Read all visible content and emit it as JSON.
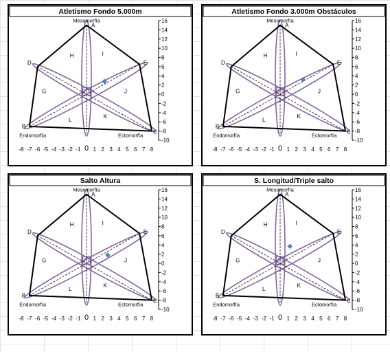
{
  "colors": {
    "polygon": "#000000",
    "ellipse": "#8064a2",
    "axis": "#000000",
    "point": "#4f81bd",
    "title_border": "#000000"
  },
  "chart_data": [
    {
      "type": "scatter",
      "title": "Atletismo Fondo 5.000m",
      "xlabel": "Ectomorfía",
      "ylabel": "Mesomorfía",
      "x_left_label": "Endomorfía",
      "xlim": [
        -8,
        8
      ],
      "ylim": [
        -10,
        16
      ],
      "x_ticks": [
        "-8",
        "-7",
        "-6",
        "-5",
        "-4",
        "-3",
        "-2",
        "-1",
        "0",
        "1",
        "2",
        "3",
        "4",
        "5",
        "6",
        "7",
        "8"
      ],
      "y_ticks": [
        "16",
        "14",
        "12",
        "10",
        "8",
        "6",
        "4",
        "2",
        "0",
        "-2",
        "-4",
        "-6",
        "-8",
        "-10"
      ],
      "x_zero_label": "0",
      "vertex_labels": [
        "A",
        "B",
        "C",
        "D",
        "E"
      ],
      "region_labels": [
        "H",
        "I",
        "J",
        "K",
        "L",
        "G"
      ],
      "polygon": [
        [
          0,
          15
        ],
        [
          6.5,
          6.5
        ],
        [
          8,
          -8
        ],
        [
          -7,
          -7
        ],
        [
          -6,
          6
        ]
      ],
      "point": {
        "x": 2.2,
        "y": 2.8
      }
    },
    {
      "type": "scatter",
      "title": "Atletismo Fondo 3.000m Obstáculos",
      "xlabel": "Ectomorfía",
      "ylabel": "Mesomorfía",
      "x_left_label": "Endomorfía",
      "xlim": [
        -8,
        8
      ],
      "ylim": [
        -10,
        16
      ],
      "x_ticks": [
        "-8",
        "-7",
        "-6",
        "-5",
        "-4",
        "-3",
        "-2",
        "-1",
        "0",
        "1",
        "2",
        "3",
        "4",
        "5",
        "6",
        "7",
        "8"
      ],
      "y_ticks": [
        "16",
        "14",
        "12",
        "10",
        "8",
        "6",
        "4",
        "2",
        "0",
        "-2",
        "-4",
        "-6",
        "-8",
        "-10"
      ],
      "x_zero_label": "0",
      "vertex_labels": [
        "A",
        "B",
        "C",
        "D",
        "E"
      ],
      "region_labels": [
        "H",
        "I",
        "J",
        "K",
        "L",
        "G"
      ],
      "polygon": [
        [
          0,
          15
        ],
        [
          6.5,
          6.5
        ],
        [
          8,
          -8
        ],
        [
          -7,
          -7
        ],
        [
          -6,
          6
        ]
      ],
      "point": {
        "x": 2.8,
        "y": 3.2
      }
    },
    {
      "type": "scatter",
      "title": "Salto Altura",
      "xlabel": "Ectomorfía",
      "ylabel": "Mesomorfía",
      "x_left_label": "Endomorfía",
      "xlim": [
        -8,
        8
      ],
      "ylim": [
        -10,
        16
      ],
      "x_ticks": [
        "-8",
        "-7",
        "-6",
        "-5",
        "-4",
        "-3",
        "-2",
        "-1",
        "0",
        "1",
        "2",
        "3",
        "4",
        "5",
        "6",
        "7",
        "8"
      ],
      "y_ticks": [
        "16",
        "14",
        "12",
        "10",
        "8",
        "6",
        "4",
        "2",
        "0",
        "-2",
        "-4",
        "-6",
        "-8",
        "-10"
      ],
      "x_zero_label": "0",
      "vertex_labels": [
        "A",
        "B",
        "C",
        "D",
        "E"
      ],
      "region_labels": [
        "H",
        "I",
        "J",
        "K",
        "L",
        "G"
      ],
      "polygon": [
        [
          0,
          15
        ],
        [
          6.5,
          6.5
        ],
        [
          8,
          -8
        ],
        [
          -7,
          -7
        ],
        [
          -6,
          6
        ]
      ],
      "point": {
        "x": 2.6,
        "y": 1.8
      }
    },
    {
      "type": "scatter",
      "title": "S. Longitud/Triple salto",
      "xlabel": "Ectomorfía",
      "ylabel": "Mesomorfía",
      "x_left_label": "Endomorfía",
      "xlim": [
        -8,
        8
      ],
      "ylim": [
        -10,
        16
      ],
      "x_ticks": [
        "-8",
        "-7",
        "-6",
        "-5",
        "-4",
        "-3",
        "-2",
        "-1",
        "0",
        "1",
        "2",
        "3",
        "4",
        "5",
        "6",
        "7",
        "8"
      ],
      "y_ticks": [
        "16",
        "14",
        "12",
        "10",
        "8",
        "6",
        "4",
        "2",
        "0",
        "-2",
        "-4",
        "-6",
        "-8",
        "-10"
      ],
      "x_zero_label": "0",
      "vertex_labels": [
        "A",
        "B",
        "C",
        "D",
        "E"
      ],
      "region_labels": [
        "H",
        "I",
        "J",
        "K",
        "L",
        "G"
      ],
      "polygon": [
        [
          0,
          15
        ],
        [
          6.5,
          6.5
        ],
        [
          8,
          -8
        ],
        [
          -7,
          -7
        ],
        [
          -6,
          6
        ]
      ],
      "point": {
        "x": 1.2,
        "y": 3.7
      }
    }
  ]
}
